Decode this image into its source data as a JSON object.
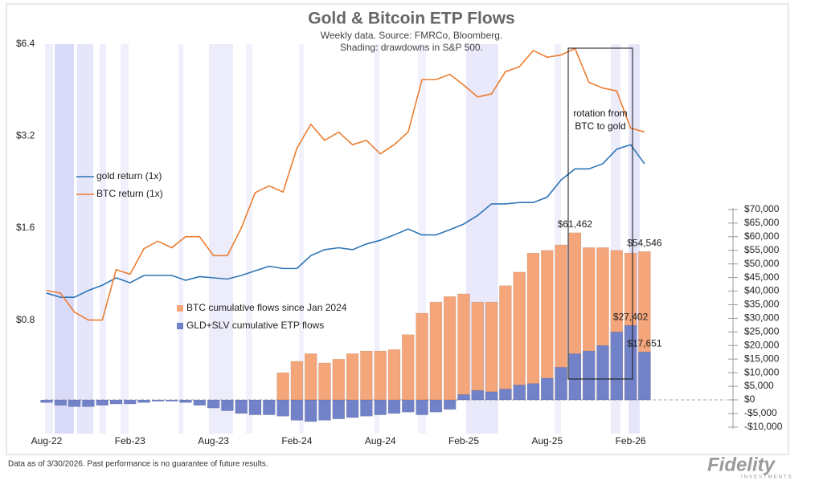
{
  "chart_data": {
    "type": "combo",
    "title": "Gold & Bitcoin ETP Flows",
    "subtitle": [
      "Weekly data.  Source: FMRCo, Bloomberg.",
      "Shading: drawdowns in S&P 500."
    ],
    "annotation": "rotation from BTC to gold",
    "categories": [
      "Aug-22",
      null,
      null,
      null,
      null,
      null,
      "Feb-23",
      null,
      null,
      null,
      null,
      null,
      "Aug-23",
      null,
      null,
      null,
      null,
      null,
      "Feb-24",
      null,
      null,
      null,
      null,
      null,
      "Aug-24",
      null,
      null,
      null,
      null,
      null,
      "Feb-25",
      null,
      null,
      null,
      null,
      null,
      "Aug-25",
      null,
      null,
      null,
      null,
      null,
      "Feb-26",
      null
    ],
    "yscale": "log",
    "ylim": [
      0.34,
      6.4
    ],
    "yticks": [
      {
        "value": 0.8,
        "label": "$0.8"
      },
      {
        "value": 1.6,
        "label": "$1.6"
      },
      {
        "value": 3.2,
        "label": "$3.2"
      },
      {
        "value": 6.4,
        "label": "$6.4"
      }
    ],
    "y2lim": [
      -12400,
      130800
    ],
    "y2ticks": [
      {
        "value": -10000,
        "label": "-$10,000"
      },
      {
        "value": -5000,
        "label": "-$5,000"
      },
      {
        "value": 0,
        "label": "$0"
      },
      {
        "value": 5000,
        "label": "$5,000"
      },
      {
        "value": 10000,
        "label": "$10,000"
      },
      {
        "value": 15000,
        "label": "$15,000"
      },
      {
        "value": 20000,
        "label": "$20,000"
      },
      {
        "value": 25000,
        "label": "$25,000"
      },
      {
        "value": 30000,
        "label": "$30,000"
      },
      {
        "value": 35000,
        "label": "$35,000"
      },
      {
        "value": 40000,
        "label": "$40,000"
      },
      {
        "value": 45000,
        "label": "$45,000"
      },
      {
        "value": 50000,
        "label": "$50,000"
      },
      {
        "value": 55000,
        "label": "$55,000"
      },
      {
        "value": 60000,
        "label": "$60,000"
      },
      {
        "value": 65000,
        "label": "$65,000"
      },
      {
        "value": 70000,
        "label": "$70,000"
      }
    ],
    "series": [
      {
        "name": "gold return (1x)",
        "type": "line",
        "color": "#2e75b6",
        "values": [
          0.98,
          0.95,
          0.95,
          1.0,
          1.04,
          1.1,
          1.06,
          1.12,
          1.12,
          1.12,
          1.08,
          1.11,
          1.1,
          1.09,
          1.12,
          1.16,
          1.2,
          1.18,
          1.18,
          1.3,
          1.36,
          1.38,
          1.36,
          1.42,
          1.46,
          1.52,
          1.59,
          1.52,
          1.52,
          1.58,
          1.65,
          1.76,
          1.92,
          1.92,
          1.94,
          1.94,
          2.02,
          2.3,
          2.5,
          2.5,
          2.6,
          2.9,
          3.0,
          2.6
        ]
      },
      {
        "name": "BTC return (1x)",
        "type": "line",
        "color": "#ed7d31",
        "values": [
          1.0,
          0.98,
          0.85,
          0.8,
          0.8,
          1.17,
          1.13,
          1.37,
          1.45,
          1.38,
          1.5,
          1.5,
          1.3,
          1.3,
          1.6,
          2.09,
          2.2,
          2.1,
          2.92,
          3.5,
          3.1,
          3.3,
          3.0,
          3.1,
          2.8,
          3.0,
          3.3,
          4.9,
          4.9,
          5.1,
          4.7,
          4.3,
          4.4,
          5.2,
          5.4,
          6.1,
          5.8,
          5.9,
          6.2,
          4.8,
          4.6,
          4.5,
          3.4,
          3.3
        ]
      },
      {
        "name": "BTC cumulative flows since Jan 2024",
        "type": "bar",
        "axis": "y2",
        "color": "#f4a57a",
        "values": [
          null,
          null,
          null,
          null,
          null,
          null,
          null,
          null,
          null,
          null,
          null,
          null,
          null,
          null,
          null,
          null,
          null,
          10000,
          14200,
          17000,
          13600,
          15000,
          17000,
          18000,
          18000,
          18500,
          24000,
          31900,
          36000,
          38000,
          39000,
          36000,
          36000,
          42000,
          47000,
          54000,
          55000,
          57000,
          61462,
          56000,
          56000,
          55000,
          54000,
          54546
        ],
        "value_labels": [
          null,
          null,
          null,
          null,
          null,
          null,
          null,
          null,
          null,
          null,
          null,
          null,
          null,
          null,
          null,
          null,
          null,
          null,
          null,
          null,
          null,
          null,
          null,
          null,
          null,
          null,
          null,
          null,
          null,
          null,
          null,
          null,
          null,
          null,
          null,
          null,
          null,
          null,
          "$61,462",
          null,
          null,
          null,
          null,
          "$54,546"
        ]
      },
      {
        "name": "GLD+SLV cumulative ETP flows",
        "type": "bar",
        "axis": "y2",
        "color": "#7282c8",
        "values": [
          -1000,
          -2000,
          -2500,
          -2500,
          -2000,
          -1500,
          -1500,
          -1000,
          -500,
          -500,
          -1000,
          -2000,
          -3000,
          -4000,
          -5000,
          -5500,
          -5500,
          -6000,
          -7500,
          -8000,
          -7500,
          -7000,
          -6500,
          -6000,
          -5500,
          -5000,
          -4500,
          -5500,
          -4500,
          -3500,
          2000,
          3500,
          3000,
          4000,
          5500,
          6000,
          8000,
          12000,
          17000,
          18000,
          20000,
          25000,
          27402,
          17651
        ],
        "value_labels": [
          null,
          null,
          null,
          null,
          null,
          null,
          null,
          null,
          null,
          null,
          null,
          null,
          null,
          null,
          null,
          null,
          null,
          null,
          null,
          null,
          null,
          null,
          null,
          null,
          null,
          null,
          null,
          null,
          null,
          null,
          null,
          null,
          null,
          null,
          null,
          null,
          null,
          null,
          null,
          null,
          null,
          null,
          "$27,402",
          "$17,651"
        ]
      }
    ]
  },
  "footer": "Data as of 3/30/2026. Past performance is no guarantee of future results.",
  "logo": {
    "name": "Fidelity",
    "sub": "INVESTMENTS"
  }
}
